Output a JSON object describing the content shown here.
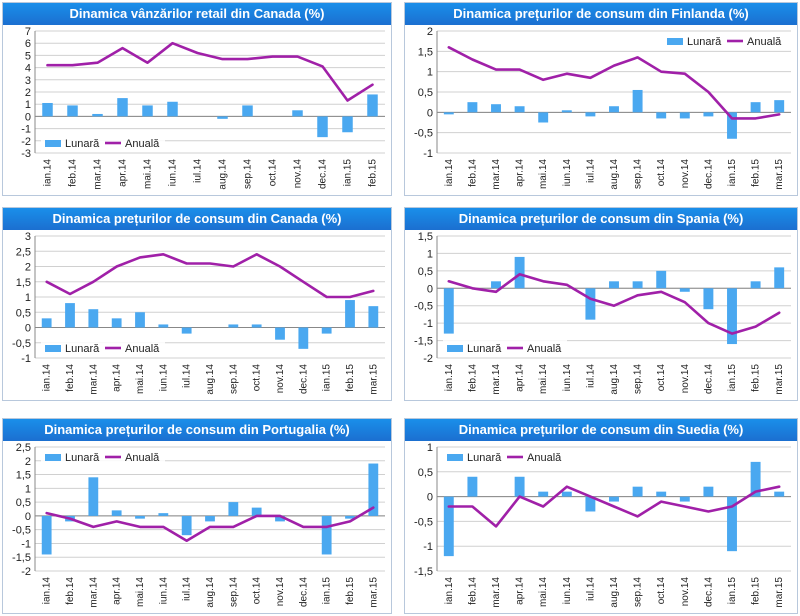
{
  "chart_data": [
    {
      "id": "retail-canada",
      "type": "bar+line",
      "title": "Dinamica vânzărilor retail din Canada (%)",
      "categories": [
        "ian.14",
        "feb.14",
        "mar.14",
        "apr.14",
        "mai.14",
        "iun.14",
        "iul.14",
        "aug.14",
        "sep.14",
        "oct.14",
        "nov.14",
        "dec.14",
        "ian.15",
        "feb.15"
      ],
      "series": [
        {
          "name": "Lunară",
          "kind": "bar",
          "color": "#4aa8f0",
          "values": [
            1.1,
            0.9,
            0.2,
            1.5,
            0.9,
            1.2,
            0.0,
            -0.2,
            0.9,
            0.0,
            0.5,
            -1.7,
            -1.3,
            1.8
          ]
        },
        {
          "name": "Anuală",
          "kind": "line",
          "color": "#a020a8",
          "values": [
            4.2,
            4.2,
            4.4,
            5.6,
            4.4,
            6.0,
            5.2,
            4.7,
            4.7,
            4.9,
            4.9,
            4.1,
            1.3,
            2.6
          ]
        }
      ],
      "ylim": [
        -3,
        7
      ],
      "yticks": [
        -3,
        -2,
        -1,
        0,
        1,
        2,
        3,
        4,
        5,
        6,
        7
      ],
      "legend": {
        "position": "bottom-left",
        "labels": [
          "Lunară",
          "Anuală"
        ]
      }
    },
    {
      "id": "cpi-finland",
      "type": "bar+line",
      "title": "Dinamica prețurilor de consum din Finlanda (%)",
      "categories": [
        "ian.14",
        "feb.14",
        "mar.14",
        "apr.14",
        "mai.14",
        "iun.14",
        "iul.14",
        "aug.14",
        "sep.14",
        "oct.14",
        "nov.14",
        "dec.14",
        "ian.15",
        "feb.15",
        "mar.15"
      ],
      "series": [
        {
          "name": "Lunară",
          "kind": "bar",
          "color": "#4aa8f0",
          "values": [
            -0.05,
            0.25,
            0.2,
            0.15,
            -0.25,
            0.05,
            -0.1,
            0.15,
            0.55,
            -0.15,
            -0.15,
            -0.1,
            -0.65,
            0.25,
            0.3
          ]
        },
        {
          "name": "Anuală",
          "kind": "line",
          "color": "#a020a8",
          "values": [
            1.6,
            1.3,
            1.05,
            1.05,
            0.8,
            0.95,
            0.85,
            1.15,
            1.35,
            1.0,
            0.95,
            0.5,
            -0.15,
            -0.15,
            -0.05
          ]
        }
      ],
      "ylim": [
        -1,
        2
      ],
      "yticks": [
        -1,
        -0.5,
        0,
        0.5,
        1,
        1.5,
        2
      ],
      "legend": {
        "position": "top-right",
        "labels": [
          "Lunară",
          "Anuală"
        ]
      }
    },
    {
      "id": "cpi-canada",
      "type": "bar+line",
      "title": "Dinamica prețurilor de consum din Canada (%)",
      "categories": [
        "ian.14",
        "feb.14",
        "mar.14",
        "apr.14",
        "mai.14",
        "iun.14",
        "iul.14",
        "aug.14",
        "sep.14",
        "oct.14",
        "nov.14",
        "dec.14",
        "ian.15",
        "feb.15",
        "mar.15"
      ],
      "series": [
        {
          "name": "Lunară",
          "kind": "bar",
          "color": "#4aa8f0",
          "values": [
            0.3,
            0.8,
            0.6,
            0.3,
            0.5,
            0.1,
            -0.2,
            0.0,
            0.1,
            0.1,
            -0.4,
            -0.7,
            -0.2,
            0.9,
            0.7
          ]
        },
        {
          "name": "Anuală",
          "kind": "line",
          "color": "#a020a8",
          "values": [
            1.5,
            1.1,
            1.5,
            2.0,
            2.3,
            2.4,
            2.1,
            2.1,
            2.0,
            2.4,
            2.0,
            1.5,
            1.0,
            1.0,
            1.2
          ]
        }
      ],
      "ylim": [
        -1,
        3
      ],
      "yticks": [
        -1,
        -0.5,
        0,
        0.5,
        1,
        1.5,
        2,
        2.5,
        3
      ],
      "legend": {
        "position": "bottom-left",
        "labels": [
          "Lunară",
          "Anuală"
        ]
      }
    },
    {
      "id": "cpi-spain",
      "type": "bar+line",
      "title": "Dinamica prețurilor de consum din Spania (%)",
      "categories": [
        "ian.14",
        "feb.14",
        "mar.14",
        "apr.14",
        "mai.14",
        "iun.14",
        "iul.14",
        "aug.14",
        "sep.14",
        "oct.14",
        "nov.14",
        "dec.14",
        "ian.15",
        "feb.15",
        "mar.15"
      ],
      "series": [
        {
          "name": "Lunară",
          "kind": "bar",
          "color": "#4aa8f0",
          "values": [
            -1.3,
            0.0,
            0.2,
            0.9,
            0.0,
            0.0,
            -0.9,
            0.2,
            0.2,
            0.5,
            -0.1,
            -0.6,
            -1.6,
            0.2,
            0.6
          ]
        },
        {
          "name": "Anuală",
          "kind": "line",
          "color": "#a020a8",
          "values": [
            0.2,
            0.0,
            -0.1,
            0.4,
            0.2,
            0.1,
            -0.3,
            -0.5,
            -0.2,
            -0.1,
            -0.4,
            -1.0,
            -1.3,
            -1.1,
            -0.7
          ]
        }
      ],
      "ylim": [
        -2,
        1.5
      ],
      "yticks": [
        -2,
        -1.5,
        -1,
        -0.5,
        0,
        0.5,
        1,
        1.5
      ],
      "legend": {
        "position": "bottom-left",
        "labels": [
          "Lunară",
          "Anuală"
        ]
      }
    },
    {
      "id": "cpi-portugal",
      "type": "bar+line",
      "title": "Dinamica prețurilor de consum din Portugalia (%)",
      "categories": [
        "ian.14",
        "feb.14",
        "mar.14",
        "apr.14",
        "mai.14",
        "iun.14",
        "iul.14",
        "aug.14",
        "sep.14",
        "oct.14",
        "nov.14",
        "dec.14",
        "ian.15",
        "feb.15",
        "mar.15"
      ],
      "series": [
        {
          "name": "Lunară",
          "kind": "bar",
          "color": "#4aa8f0",
          "values": [
            -1.4,
            -0.2,
            1.4,
            0.2,
            -0.1,
            0.1,
            -0.7,
            -0.2,
            0.5,
            0.3,
            -0.2,
            0.0,
            -1.4,
            -0.1,
            1.9
          ]
        },
        {
          "name": "Anuală",
          "kind": "line",
          "color": "#a020a8",
          "values": [
            0.1,
            -0.1,
            -0.4,
            -0.2,
            -0.4,
            -0.4,
            -0.9,
            -0.4,
            -0.4,
            0.0,
            0.0,
            -0.4,
            -0.4,
            -0.2,
            0.3
          ]
        }
      ],
      "ylim": [
        -2,
        2.5
      ],
      "yticks": [
        -2,
        -1.5,
        -1,
        -0.5,
        0,
        0.5,
        1,
        1.5,
        2,
        2.5
      ],
      "legend": {
        "position": "top-left",
        "labels": [
          "Lunară",
          "Anuală"
        ]
      }
    },
    {
      "id": "cpi-sweden",
      "type": "bar+line",
      "title": "Dinamica prețurilor de consum din Suedia (%)",
      "categories": [
        "ian.14",
        "feb.14",
        "mar.14",
        "apr.14",
        "mai.14",
        "iun.14",
        "iul.14",
        "aug.14",
        "sep.14",
        "oct.14",
        "nov.14",
        "dec.14",
        "ian.15",
        "feb.15",
        "mar.15"
      ],
      "series": [
        {
          "name": "Lunară",
          "kind": "bar",
          "color": "#4aa8f0",
          "values": [
            -1.2,
            0.4,
            0.0,
            0.4,
            0.1,
            0.1,
            -0.3,
            -0.1,
            0.2,
            0.1,
            -0.1,
            0.2,
            -1.1,
            0.7,
            0.1
          ]
        },
        {
          "name": "Anuală",
          "kind": "line",
          "color": "#a020a8",
          "values": [
            -0.2,
            -0.2,
            -0.6,
            0.0,
            -0.2,
            0.2,
            0.0,
            -0.2,
            -0.4,
            -0.1,
            -0.2,
            -0.3,
            -0.2,
            0.1,
            0.2
          ]
        }
      ],
      "ylim": [
        -1.5,
        1
      ],
      "yticks": [
        -1.5,
        -1,
        -0.5,
        0,
        0.5,
        1
      ],
      "legend": {
        "position": "top-left",
        "labels": [
          "Lunară",
          "Anuală"
        ]
      }
    }
  ]
}
